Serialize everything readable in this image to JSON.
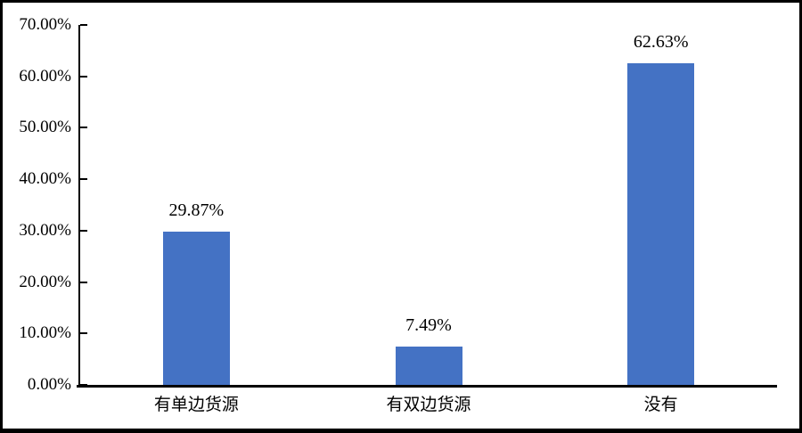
{
  "chart_data": {
    "type": "bar",
    "title": "",
    "xlabel": "",
    "ylabel": "",
    "categories": [
      "有单边货源",
      "有双边货源",
      "没有"
    ],
    "values": [
      29.87,
      7.49,
      62.63
    ],
    "data_labels": [
      "29.87%",
      "7.49%",
      "62.63%"
    ],
    "series_name": "",
    "ylim": [
      0,
      70
    ],
    "y_ticks": [
      {
        "value": 0,
        "label": "0.00%"
      },
      {
        "value": 10,
        "label": "10.00%"
      },
      {
        "value": 20,
        "label": "20.00%"
      },
      {
        "value": 30,
        "label": "30.00%"
      },
      {
        "value": 40,
        "label": "40.00%"
      },
      {
        "value": 50,
        "label": "50.00%"
      },
      {
        "value": 60,
        "label": "60.00%"
      },
      {
        "value": 70,
        "label": "70.00%"
      }
    ],
    "grid": false,
    "legend": false,
    "tick_style": "inside",
    "colors": {
      "bar": "#4472C4",
      "axis": "#000000",
      "text": "#000000",
      "background": "#ffffff",
      "frame_border": "#000000"
    }
  }
}
